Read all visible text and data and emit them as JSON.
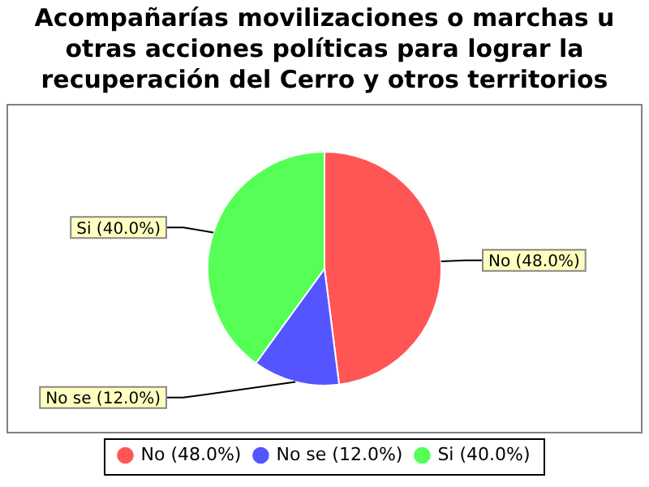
{
  "chart_data": {
    "type": "pie",
    "title": "Acompañarías movilizaciones o marchas u otras acciones políticas para lograr la recuperación del Cerro y otros territorios",
    "categories": [
      "No (48.0%)",
      "No se (12.0%)",
      "Si (40.0%)"
    ],
    "values": [
      48,
      12,
      40
    ],
    "colors": [
      "#ff5555",
      "#5555ff",
      "#55ff55"
    ],
    "legend": "bottom"
  }
}
